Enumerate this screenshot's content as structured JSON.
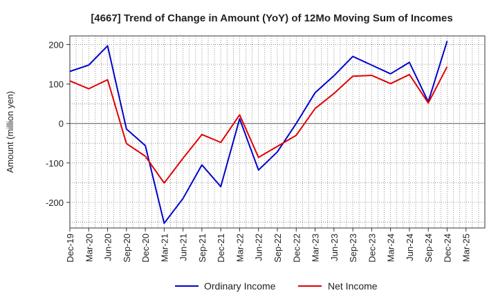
{
  "chart_data": {
    "type": "line",
    "title": "[4667]  Trend of Change in Amount (YoY) of 12Mo Moving Sum of Incomes",
    "ylabel": "Amount (million yen)",
    "xlabel": "",
    "ylim": [
      -265,
      222
    ],
    "yticks": [
      200,
      100,
      0,
      -100,
      -200
    ],
    "categories": [
      "Dec-19",
      "Mar-20",
      "Jun-20",
      "Sep-20",
      "Dec-20",
      "Mar-21",
      "Jun-21",
      "Sep-21",
      "Dec-21",
      "Mar-22",
      "Jun-22",
      "Sep-22",
      "Dec-22",
      "Mar-23",
      "Jun-23",
      "Sep-23",
      "Dec-23",
      "Mar-24",
      "Jun-24",
      "Sep-24",
      "Dec-24",
      "Mar-25"
    ],
    "series": [
      {
        "name": "Ordinary Income",
        "color": "#0000cc",
        "values": [
          132,
          148,
          197,
          -14,
          -56,
          -253,
          -190,
          -105,
          -160,
          12,
          -118,
          -72,
          0,
          78,
          121,
          170,
          148,
          126,
          155,
          55,
          209,
          null
        ]
      },
      {
        "name": "Net Income",
        "color": "#e00000",
        "values": [
          108,
          88,
          111,
          -51,
          -83,
          -151,
          -88,
          -28,
          -48,
          22,
          -86,
          -58,
          -30,
          38,
          76,
          120,
          122,
          101,
          124,
          52,
          144,
          null
        ]
      }
    ],
    "grid": true,
    "legend_position": "bottom-center"
  }
}
